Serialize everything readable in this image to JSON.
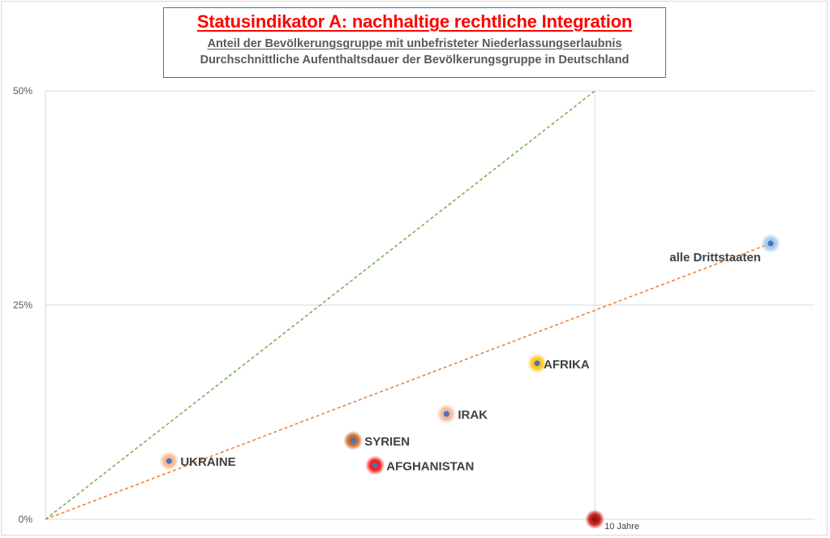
{
  "chart_data": {
    "type": "scatter",
    "title": "Statusindikator A: nachhaltige rechtliche Integration",
    "subtitle_1": "Anteil der Bevölkerungsgruppe mit unbefristeter Niederlassungserlaubnis",
    "subtitle_2": "Durchschnittliche Aufenthaltsdauer der Bevölkerungsgruppe in Deutschland",
    "xlim": [
      0,
      14
    ],
    "ylim": [
      0,
      50
    ],
    "y_ticks": [
      {
        "value": 0,
        "label": "0%"
      },
      {
        "value": 25,
        "label": "25%"
      },
      {
        "value": 50,
        "label": "50%"
      }
    ],
    "x_reference": {
      "value": 10,
      "label": "10 Jahre"
    },
    "grid": true,
    "points": [
      {
        "name": "UKRAINE",
        "x": 2.25,
        "y": 6.8,
        "halo": "#f4b183"
      },
      {
        "name": "SYRIEN",
        "x": 5.6,
        "y": 9.2,
        "halo": "#c55a11"
      },
      {
        "name": "AFGHANISTAN",
        "x": 6.0,
        "y": 6.3,
        "halo": "#ff0000"
      },
      {
        "name": "IRAK",
        "x": 7.3,
        "y": 12.3,
        "halo": "#f4b183"
      },
      {
        "name": "AFRIKA",
        "x": 8.95,
        "y": 18.2,
        "halo": "#ffc000"
      },
      {
        "name": "alle Drittstaaten",
        "x": 13.2,
        "y": 32.2,
        "halo": "#9dc3e6"
      }
    ],
    "reference_point": {
      "x": 10,
      "y": 0,
      "halo": "#c00000"
    },
    "trend_lines": [
      {
        "name": "green-dashed",
        "from": [
          0,
          0
        ],
        "to": [
          10,
          50
        ],
        "color": "#70ad47"
      },
      {
        "name": "orange-dashed",
        "from": [
          0,
          0
        ],
        "to": [
          13.2,
          32.2
        ],
        "color": "#ed7d31"
      }
    ],
    "dot_color": "#4472c4"
  }
}
